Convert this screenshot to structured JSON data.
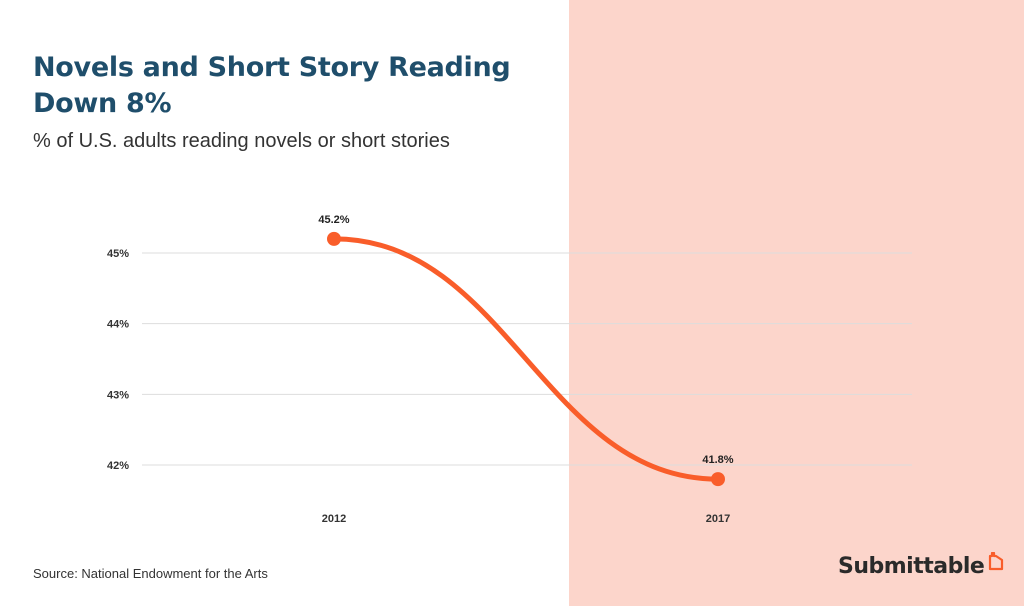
{
  "header": {
    "title": "Novels and Short Story Reading Down 8%",
    "subtitle": "% of U.S. adults reading novels or short stories"
  },
  "footer": {
    "source": "Source: National Endowment for the Arts",
    "brand": "Submittable",
    "brand_mark_icon": "submittable-logo-icon"
  },
  "colors": {
    "line": "#f95d2a",
    "title": "#1f4e6b",
    "shade": "#fcd5cb",
    "grid": "#dddddd"
  },
  "chart_data": {
    "type": "line",
    "categories": [
      "2012",
      "2017"
    ],
    "series": [
      {
        "values": [
          45.2,
          41.8
        ],
        "labels": [
          "45.2%",
          "41.8%"
        ]
      }
    ],
    "yticks": [
      {
        "value": 45,
        "label": "45%"
      },
      {
        "value": 44,
        "label": "44%"
      },
      {
        "value": 43,
        "label": "43%"
      },
      {
        "value": 42,
        "label": "42%"
      }
    ],
    "ylim": [
      41.8,
      45.2
    ],
    "grid": true,
    "legend": "none"
  }
}
